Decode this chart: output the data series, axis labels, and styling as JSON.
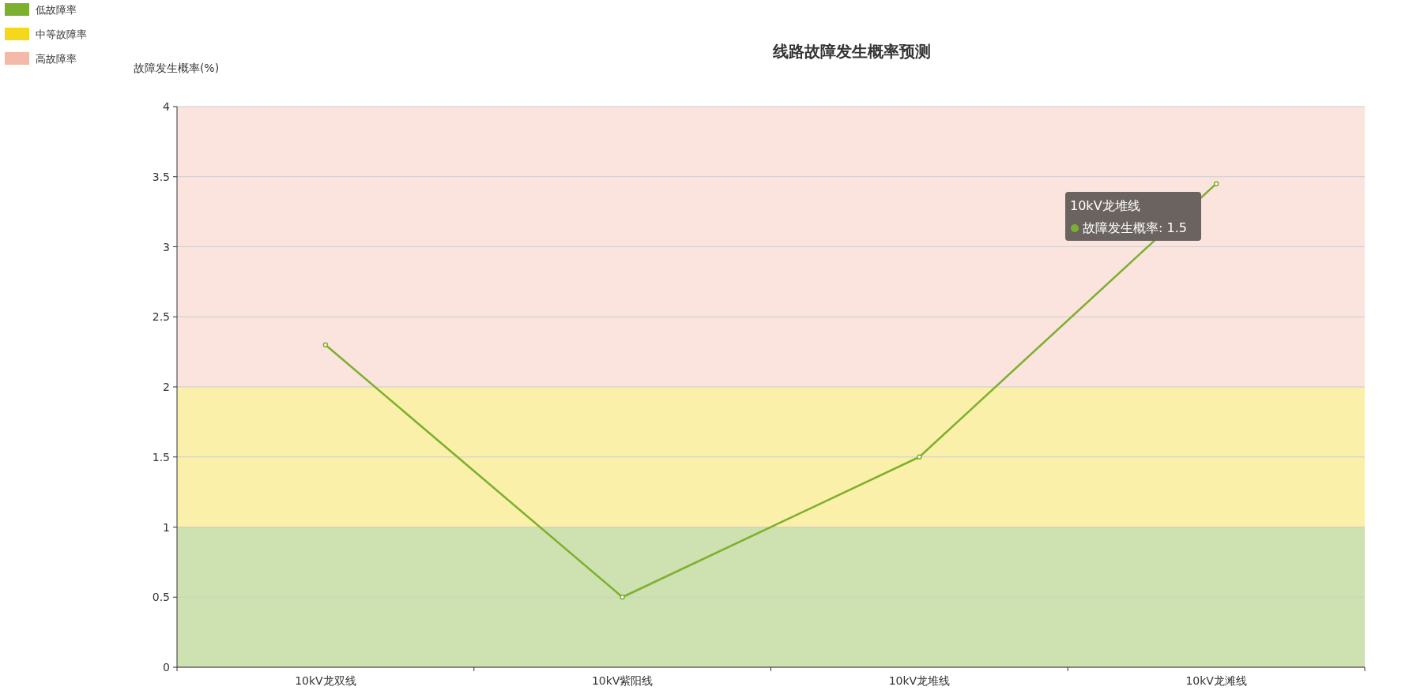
{
  "chart_data": {
    "type": "line",
    "title": "线路故障发生概率预测",
    "ylabel": "故障发生概率(%)",
    "categories": [
      "10kV龙双线",
      "10kV紫阳线",
      "10kV龙堆线",
      "10kV龙滩线"
    ],
    "series": [
      {
        "color": "#7eb02f",
        "values": [
          2.3,
          0.5,
          1.5,
          3.45
        ]
      }
    ],
    "ylim": [
      0,
      4
    ],
    "yticks": [
      0,
      0.5,
      1,
      1.5,
      2,
      2.5,
      3,
      3.5,
      4
    ],
    "bands": [
      {
        "axis": "y",
        "from": 0,
        "to": 1,
        "label": "低故障率",
        "color": "#7eb02f"
      },
      {
        "axis": "y",
        "from": 1,
        "to": 2,
        "label": "中等故障率",
        "color": "#f5d81c"
      },
      {
        "axis": "y",
        "from": 2,
        "to": 4,
        "label": "高故障率",
        "color": "#f4b9a9"
      }
    ],
    "annotations": [
      "10kV龙堆线",
      "故障发生概率: 1.5"
    ],
    "grid": "y",
    "legend": "top left",
    "marker": "circle",
    "line_style": "solid"
  }
}
